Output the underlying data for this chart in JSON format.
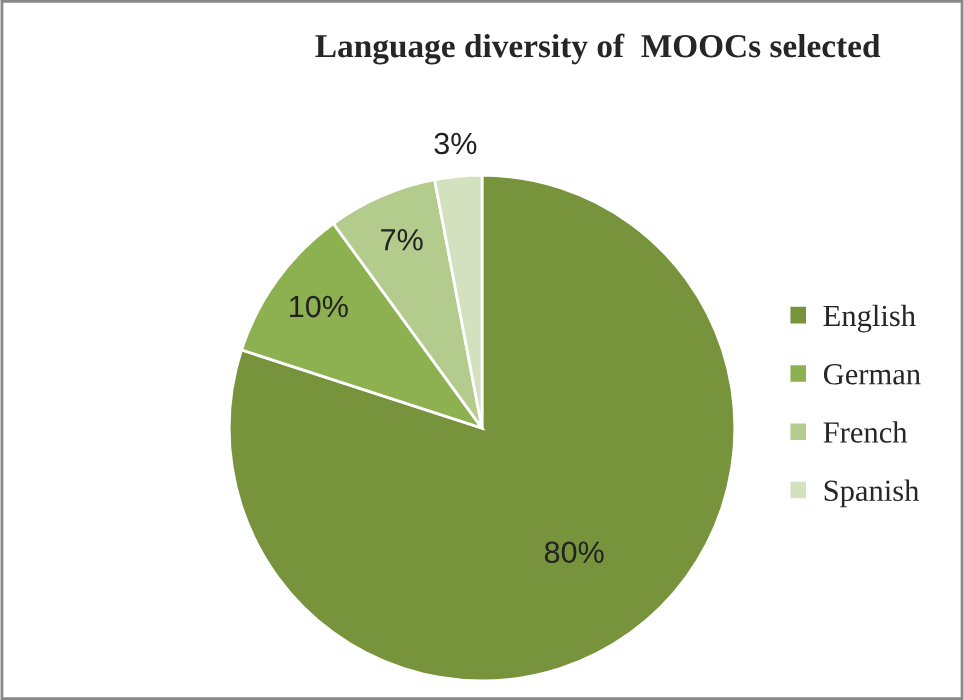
{
  "chart_data": {
    "type": "pie",
    "title": "Language diversity of  MOOCs selected",
    "categories": [
      "English",
      "German",
      "French",
      "Spanish"
    ],
    "values": [
      80,
      10,
      7,
      3
    ],
    "value_labels": [
      "80%",
      "10%",
      "7%",
      "3%"
    ],
    "colors": [
      "#77933c",
      "#8db050",
      "#b3cb8d",
      "#d3e1be"
    ],
    "legend": "right"
  }
}
